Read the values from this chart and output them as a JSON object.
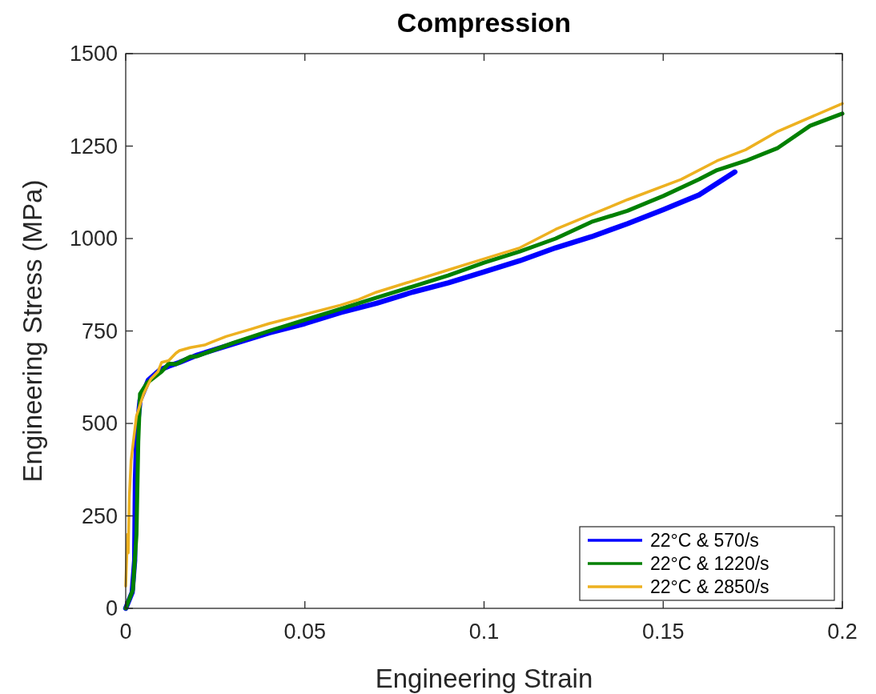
{
  "chart_data": {
    "type": "line",
    "title": "Compression",
    "xlabel": "Engineering Strain",
    "ylabel": "Engineering Stress (MPa)",
    "xlim": [
      0,
      0.2
    ],
    "xticks": [
      0,
      0.05,
      0.1,
      0.15,
      0.2
    ],
    "ylim": [
      0,
      1500
    ],
    "yticks": [
      0,
      250,
      500,
      750,
      1000,
      1250,
      1500
    ],
    "grid": false,
    "legend": "bottom right",
    "line_style": "solid",
    "marker": "none",
    "series": [
      {
        "name": "22°C & 570/s",
        "color": "#0000ff",
        "x": [
          0,
          0.0018,
          0.0025,
          0.0027,
          0.0031,
          0.004,
          0.0063,
          0.0096,
          0.012,
          0.015,
          0.02,
          0.03,
          0.04,
          0.05,
          0.06,
          0.07,
          0.08,
          0.09,
          0.1,
          0.11,
          0.12,
          0.13,
          0.14,
          0.15,
          0.16,
          0.17
        ],
        "values": [
          0,
          43,
          130,
          346,
          476,
          563,
          617,
          645,
          655,
          665,
          685,
          715,
          745,
          770,
          800,
          825,
          855,
          880,
          910,
          940,
          975,
          1005,
          1040,
          1078,
          1118,
          1180
        ]
      },
      {
        "name": "22°C & 1220/s",
        "color": "#008000",
        "x": [
          0,
          0.002,
          0.003,
          0.0035,
          0.004,
          0.006,
          0.01,
          0.012,
          0.014,
          0.018,
          0.02,
          0.025,
          0.03,
          0.04,
          0.05,
          0.06,
          0.07,
          0.08,
          0.09,
          0.1,
          0.11,
          0.12,
          0.13,
          0.14,
          0.15,
          0.16,
          0.165,
          0.173,
          0.182,
          0.191,
          0.2
        ],
        "values": [
          0,
          50,
          200,
          450,
          580,
          610,
          640,
          662,
          660,
          680,
          682,
          700,
          718,
          750,
          780,
          810,
          840,
          870,
          900,
          935,
          965,
          1000,
          1045,
          1075,
          1115,
          1160,
          1185,
          1210,
          1245,
          1305,
          1338
        ]
      },
      {
        "name": "22°C & 2850/s",
        "color": "#edb120",
        "x": [
          0,
          0.0005,
          0.0007,
          0.001,
          0.0015,
          0.003,
          0.005,
          0.007,
          0.009,
          0.01,
          0.012,
          0.014,
          0.015,
          0.018,
          0.022,
          0.024,
          0.028,
          0.035,
          0.04,
          0.05,
          0.06,
          0.065,
          0.07,
          0.08,
          0.09,
          0.1,
          0.11,
          0.12,
          0.13,
          0.14,
          0.155,
          0.165,
          0.173,
          0.182,
          0.2
        ],
        "values": [
          60,
          200,
          150,
          300,
          400,
          520,
          580,
          620,
          640,
          665,
          670,
          690,
          697,
          705,
          712,
          720,
          735,
          755,
          770,
          795,
          820,
          835,
          855,
          885,
          915,
          945,
          975,
          1025,
          1065,
          1105,
          1160,
          1210,
          1240,
          1290,
          1365
        ]
      }
    ]
  }
}
